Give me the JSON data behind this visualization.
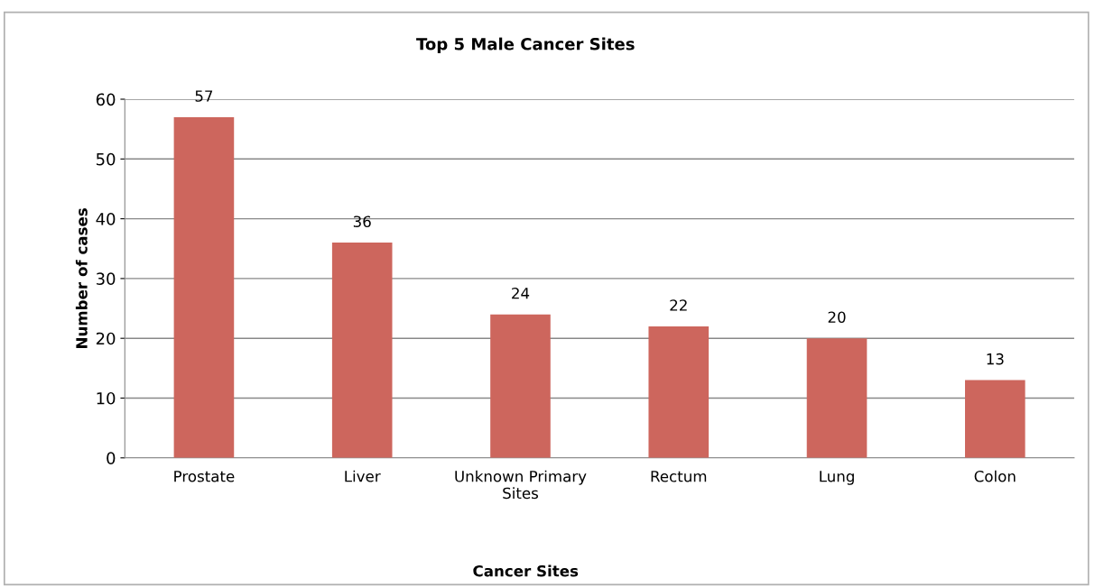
{
  "chart_data": {
    "type": "bar",
    "title": "Top 5 Male Cancer Sites",
    "xlabel": "Cancer Sites",
    "ylabel": "Number of cases",
    "categories": [
      "Prostate",
      "Liver",
      "Unknown Primary\nSites",
      "Rectum",
      "Lung",
      "Colon"
    ],
    "values": [
      57,
      36,
      24,
      22,
      20,
      13
    ],
    "color": "#cd665d",
    "ylim": [
      0,
      60
    ],
    "yticks": [
      0,
      10,
      20,
      30,
      40,
      50,
      60
    ],
    "grid": "y",
    "data_labels": true,
    "legend": false
  }
}
